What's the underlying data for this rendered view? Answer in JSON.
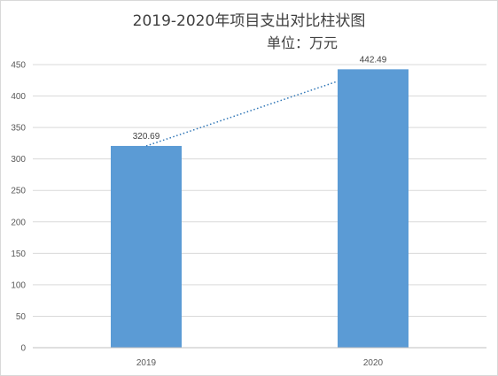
{
  "chart_data": {
    "type": "bar",
    "title": "2019-2020年项目支出对比柱状图",
    "subtitle": "单位：万元",
    "categories": [
      "2019",
      "2020"
    ],
    "values": [
      320.69,
      442.49
    ],
    "data_labels": [
      "320.69",
      "442.49"
    ],
    "ylim": [
      0,
      450
    ],
    "yticks": [
      0,
      50,
      100,
      150,
      200,
      250,
      300,
      350,
      400,
      450
    ],
    "grid": true,
    "trendline": "linear-dotted",
    "bar_color": "#5b9bd5",
    "trend_color": "#2e75b6",
    "grid_color": "#d9d9d9"
  }
}
